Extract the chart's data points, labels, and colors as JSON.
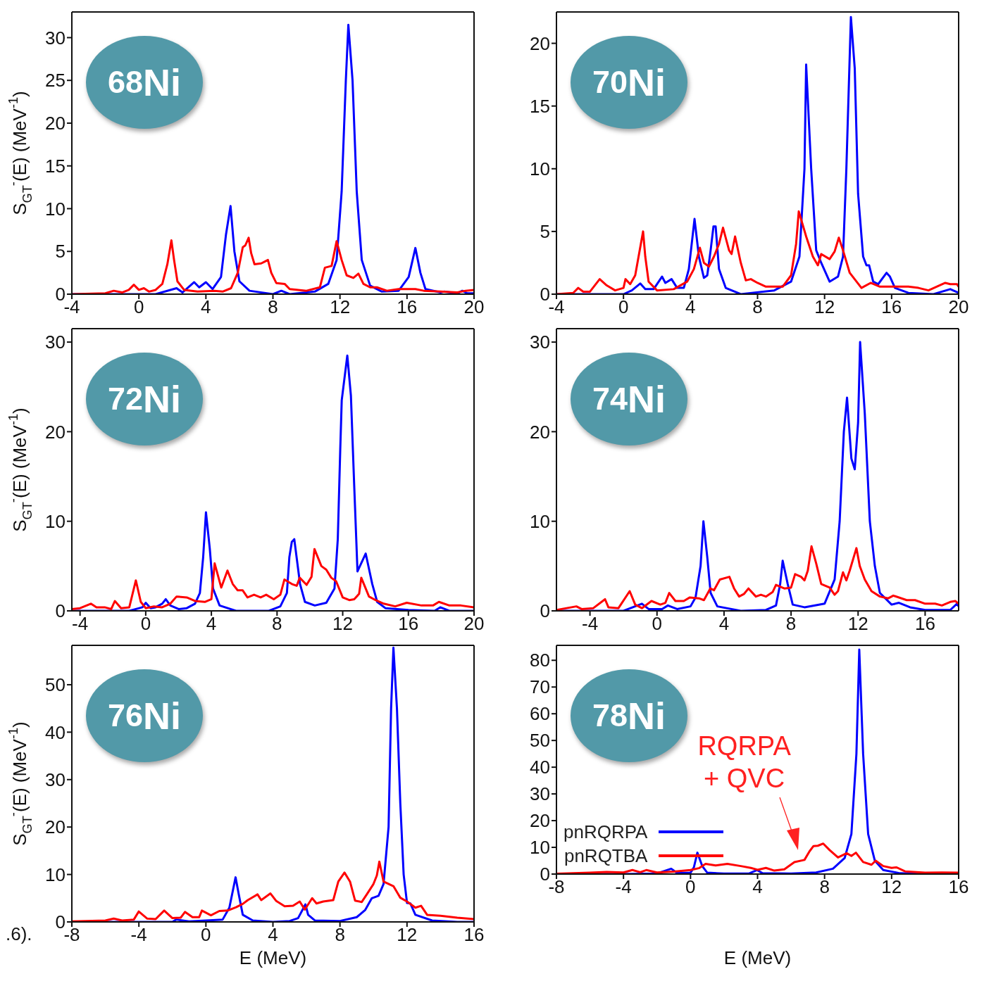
{
  "chart_data": [
    {
      "type": "line",
      "ylabel": "S$_{GT}$$^{-}$(E) (MeV$^{-1}$)",
      "xlim": [
        -4,
        20
      ],
      "xticks": [
        -4,
        0,
        4,
        8,
        12,
        16,
        20
      ],
      "ylim": [
        0,
        33
      ],
      "yticks": [
        0,
        5,
        10,
        15,
        20,
        25,
        30
      ],
      "legend": false,
      "annotations": [
        "$^{68}$Ni"
      ],
      "series": [
        {
          "color": "#0000ff",
          "x": [
            -4,
            1,
            2.25,
            2.6,
            3.3,
            3.6,
            4.0,
            4.4,
            4.9,
            5.2,
            5.47,
            5.7,
            6.0,
            6.6,
            8,
            8.5,
            9,
            10.5,
            11.3,
            11.8,
            12.1,
            12.35,
            12.5,
            12.75,
            13,
            13.3,
            13.8,
            14.5,
            15.5,
            16.1,
            16.5,
            16.8,
            17.1,
            18,
            18.2,
            19,
            19.3,
            19.6,
            20
          ],
          "values": [
            0,
            0,
            0.7,
            0.2,
            1.4,
            0.8,
            1.4,
            0.6,
            2,
            7,
            10.3,
            5,
            1.5,
            0.4,
            0,
            0.4,
            0,
            0.3,
            1.2,
            4,
            12,
            25,
            31.5,
            25,
            12,
            4,
            1,
            0.3,
            0.4,
            2,
            5.4,
            2.5,
            0.6,
            0.2,
            0.3,
            0.1,
            0.4,
            0.1,
            0.1
          ]
        },
        {
          "color": "#ff0000",
          "x": [
            -4,
            -2,
            -1.5,
            -1,
            -0.6,
            -0.3,
            0,
            0.3,
            0.6,
            1,
            1.4,
            1.7,
            1.94,
            2.1,
            2.3,
            2.7,
            3.5,
            4.5,
            5,
            5.5,
            5.9,
            6.2,
            6.35,
            6.55,
            6.7,
            6.9,
            7.3,
            7.5,
            7.7,
            7.9,
            8.2,
            8.7,
            9,
            10,
            10.8,
            11.1,
            11.5,
            11.8,
            12.1,
            12.4,
            12.8,
            13.1,
            13.4,
            13.8,
            14.2,
            14.8,
            15.5,
            16.5,
            17,
            18,
            19,
            19.5,
            20
          ],
          "values": [
            0,
            0.1,
            0.4,
            0.2,
            0.5,
            1.1,
            0.5,
            0.7,
            0.3,
            0.5,
            1.2,
            3.5,
            6.3,
            4,
            1.5,
            0.5,
            0.3,
            0.4,
            0.3,
            0.7,
            2.5,
            5.5,
            5.7,
            6.6,
            4.8,
            3.5,
            3.6,
            3.8,
            4,
            2.5,
            1.3,
            1.2,
            0.6,
            0.4,
            0.8,
            3.1,
            3.3,
            6.2,
            4,
            2.2,
            1.9,
            2.4,
            1.2,
            0.8,
            0.8,
            0.4,
            0.6,
            0.6,
            0.4,
            0.3,
            0.2,
            0.4,
            0.5
          ]
        }
      ]
    },
    {
      "type": "line",
      "xlim": [
        -4,
        20
      ],
      "xticks": [
        -4,
        0,
        4,
        8,
        12,
        16,
        20
      ],
      "ylim": [
        0,
        22.5
      ],
      "yticks": [
        0,
        5,
        10,
        15,
        20
      ],
      "legend": false,
      "annotations": [
        "$^{70}$Ni"
      ],
      "series": [
        {
          "color": "#0000ff",
          "x": [
            -4,
            0,
            0.5,
            1.0,
            1.3,
            1.8,
            2.3,
            2.5,
            2.87,
            3.2,
            3.6,
            3.9,
            4.24,
            4.5,
            4.8,
            5.0,
            5.2,
            5.37,
            5.5,
            5.7,
            6.1,
            7,
            9,
            10,
            10.5,
            10.8,
            10.9,
            11.2,
            11.5,
            11.8,
            12.3,
            12.8,
            13.1,
            13.3,
            13.57,
            13.8,
            14,
            14.3,
            14.5,
            14.66,
            14.9,
            15.2,
            15.7,
            15.9,
            16.2,
            17,
            18.5,
            19.5,
            20
          ],
          "values": [
            0,
            0,
            0.3,
            0.85,
            0.4,
            0.4,
            1.4,
            0.9,
            1.2,
            0.5,
            0.5,
            2,
            6.0,
            3,
            1.3,
            1.5,
            3.5,
            5.4,
            5.4,
            2,
            0.5,
            0,
            0.3,
            1,
            3,
            10,
            18.3,
            10,
            3.5,
            2.5,
            1,
            1.4,
            3,
            10,
            22.1,
            18,
            8,
            3,
            2.3,
            2.3,
            1,
            0.8,
            1.7,
            1.4,
            0.5,
            0.1,
            0,
            0.4,
            0.1
          ]
        },
        {
          "color": "#ff0000",
          "x": [
            -4,
            -3,
            -2.7,
            -2.4,
            -2,
            -1.42,
            -1,
            -0.5,
            0,
            0.12,
            0.4,
            0.7,
            1.17,
            1.3,
            1.5,
            2,
            3,
            3.8,
            4.2,
            4.56,
            4.8,
            5.1,
            5.4,
            5.7,
            5.94,
            6.3,
            6.45,
            6.66,
            7.0,
            7.3,
            7.6,
            8,
            8.5,
            9.5,
            10.0,
            10.3,
            10.46,
            10.9,
            11.3,
            11.6,
            11.8,
            12.3,
            12.6,
            12.85,
            13.1,
            13.5,
            14.2,
            14.75,
            15.3,
            16.2,
            17,
            17.6,
            18.2,
            19.2,
            19.5,
            19.9,
            20
          ],
          "values": [
            0,
            0.1,
            0.5,
            0.2,
            0.2,
            1.2,
            0.7,
            0.3,
            0.5,
            1.2,
            0.8,
            1.5,
            5.0,
            3,
            1,
            0.3,
            0.4,
            1,
            2,
            3.7,
            2.5,
            2.2,
            3,
            4,
            5.3,
            3.5,
            3.2,
            4.6,
            2.5,
            1.1,
            1.2,
            0.9,
            0.6,
            0.6,
            1.5,
            4,
            6.6,
            4.6,
            3,
            2.3,
            3.2,
            2.8,
            3.4,
            4.5,
            3.5,
            1.7,
            0.5,
            0.9,
            0.6,
            0.6,
            0.6,
            0.5,
            0.3,
            0.9,
            0.8,
            0.8,
            0.6
          ]
        }
      ]
    },
    {
      "type": "line",
      "ylabel": "S$_{GT}$$^{-}$(E) (MeV$^{-1}$)",
      "xlim": [
        -4.5,
        20
      ],
      "xticks": [
        -4,
        0,
        4,
        8,
        12,
        16,
        20
      ],
      "ylim": [
        0,
        31.5
      ],
      "yticks": [
        0,
        10,
        20,
        30
      ],
      "legend": false,
      "annotations": [
        "$^{72}$Ni"
      ],
      "series": [
        {
          "color": "#0000ff",
          "x": [
            -4.5,
            -1,
            -0.2,
            0,
            0.3,
            0.6,
            1.0,
            1.22,
            1.5,
            2,
            2.5,
            3,
            3.3,
            3.5,
            3.67,
            3.9,
            4.1,
            4.5,
            5.5,
            7.5,
            8.2,
            8.6,
            8.75,
            8.9,
            9.05,
            9.4,
            9.7,
            10.3,
            11,
            11.5,
            11.7,
            11.85,
            11.94,
            12.28,
            12.5,
            12.7,
            12.9,
            13.4,
            13.8,
            14.1,
            14.6,
            16,
            17.6,
            17.94,
            18.5,
            20
          ],
          "values": [
            0,
            0,
            0.4,
            0.9,
            0.3,
            0.4,
            0.8,
            1.3,
            0.6,
            0.2,
            0.3,
            0.8,
            2,
            6,
            11.0,
            7,
            2.5,
            0.6,
            0,
            0,
            0.5,
            2,
            6,
            7.7,
            8,
            3,
            1,
            0.6,
            0.9,
            2.5,
            8,
            18,
            23.5,
            28.5,
            24,
            14,
            4.4,
            6.4,
            3,
            1,
            0.3,
            0.1,
            0,
            0.4,
            0,
            0
          ]
        },
        {
          "color": "#ff0000",
          "x": [
            -4.5,
            -4,
            -3.34,
            -3,
            -2.5,
            -2.1,
            -1.88,
            -1.5,
            -1.0,
            -0.6,
            -0.3,
            0,
            0.5,
            1,
            1.5,
            1.88,
            2.5,
            3,
            3.6,
            4.0,
            4.2,
            4.6,
            4.98,
            5.3,
            5.6,
            5.9,
            6.2,
            6.6,
            7.0,
            7.34,
            7.8,
            8.2,
            8.45,
            8.9,
            9.2,
            9.38,
            9.8,
            10.1,
            10.28,
            10.7,
            11.0,
            11.3,
            11.6,
            12,
            12.4,
            12.7,
            13.0,
            13.13,
            13.6,
            14,
            14.5,
            15.2,
            15.9,
            16.8,
            17.5,
            17.86,
            18.5,
            19.2,
            20
          ],
          "values": [
            0.2,
            0.3,
            0.8,
            0.4,
            0.4,
            0.2,
            1.1,
            0.3,
            0.4,
            3.4,
            1,
            0.3,
            0.5,
            0.4,
            0.8,
            1.6,
            1.5,
            1.1,
            1,
            1.3,
            5.3,
            2.6,
            4.5,
            3,
            2.3,
            2.3,
            1.5,
            1.8,
            1.5,
            1.8,
            1.3,
            1.8,
            3.5,
            3.0,
            2.8,
            3.7,
            2.9,
            3.8,
            6.9,
            5.0,
            4.6,
            3.7,
            3.3,
            1.5,
            1.2,
            1.3,
            1.9,
            3.7,
            1.6,
            1.2,
            0.8,
            0.5,
            0.9,
            0.6,
            0.6,
            1.0,
            0.6,
            0.6,
            0.4
          ]
        }
      ]
    },
    {
      "type": "line",
      "xlim": [
        -6,
        18
      ],
      "xticks": [
        -4,
        0,
        4,
        8,
        12,
        16
      ],
      "ylim": [
        0,
        31.5
      ],
      "yticks": [
        0,
        10,
        20,
        30
      ],
      "legend": false,
      "annotations": [
        "$^{74}$Ni"
      ],
      "series": [
        {
          "color": "#0000ff",
          "x": [
            -6,
            -2,
            -0.9,
            -0.5,
            0,
            0.3,
            0.65,
            1.2,
            2,
            2.3,
            2.6,
            2.77,
            3.0,
            3.2,
            3.6,
            5,
            6.5,
            7.1,
            7.35,
            7.5,
            7.8,
            8.1,
            8.8,
            10,
            10.6,
            10.9,
            11.15,
            11.34,
            11.6,
            11.8,
            12.0,
            12.12,
            12.4,
            12.7,
            13.0,
            13.3,
            14,
            14.44,
            15.1,
            16,
            17.5,
            17.9,
            18
          ],
          "values": [
            0,
            0,
            0.8,
            0.2,
            0.2,
            0.2,
            0.6,
            0.2,
            0.5,
            1.5,
            5,
            10.0,
            6,
            2,
            0.5,
            0,
            0.1,
            0.6,
            3,
            5.6,
            3,
            0.7,
            0.4,
            0.8,
            3.5,
            10,
            20,
            23.8,
            17,
            15.8,
            21,
            30,
            22,
            10,
            5,
            2,
            0.7,
            0.9,
            0.4,
            0.1,
            0.1,
            0.8,
            0.5
          ]
        },
        {
          "color": "#ff0000",
          "x": [
            -6,
            -4.81,
            -4.5,
            -3.8,
            -3.1,
            -2.9,
            -2.3,
            -1.63,
            -1.3,
            -0.9,
            -0.33,
            0.2,
            0.5,
            0.73,
            1.1,
            1.6,
            1.96,
            2.5,
            2.8,
            3.18,
            3.4,
            3.75,
            4.32,
            4.6,
            4.9,
            5.2,
            5.46,
            5.9,
            6.2,
            6.5,
            6.9,
            7.1,
            7.6,
            8.0,
            8.24,
            8.6,
            8.8,
            9.0,
            9.22,
            9.5,
            9.8,
            10.3,
            10.6,
            10.8,
            11.1,
            11.3,
            11.5,
            11.9,
            12.1,
            12.4,
            12.8,
            13.3,
            13.8,
            14.1,
            14.9,
            15.4,
            16,
            16.6,
            17,
            17.5,
            17.8,
            18
          ],
          "values": [
            0.1,
            0.5,
            0.2,
            0.3,
            1.3,
            0.4,
            0.3,
            2.2,
            0.7,
            0.3,
            1.1,
            0.7,
            0.9,
            2.0,
            1.1,
            1.1,
            1.5,
            1.4,
            1.2,
            2.5,
            2.3,
            3.5,
            3.8,
            2.5,
            1.6,
            1.9,
            2.5,
            1.6,
            1.8,
            1.6,
            2.1,
            2.9,
            2.5,
            2.6,
            4.1,
            3.8,
            3.4,
            4.5,
            7.2,
            5.3,
            3.0,
            2.6,
            1.8,
            2.2,
            4.3,
            3.4,
            4.5,
            7.0,
            5,
            3.5,
            2.2,
            1.6,
            1.4,
            1.7,
            1.2,
            1.2,
            0.8,
            0.8,
            0.6,
            1.0,
            1.1,
            0.8
          ]
        }
      ]
    },
    {
      "type": "line",
      "ylabel": "S$_{GT}$$^{-}$(E) (MeV$^{-1}$)",
      "xlabel": "E (MeV)",
      "xlim": [
        -8,
        16
      ],
      "xticks": [
        -8,
        -4,
        0,
        4,
        8,
        12,
        16
      ],
      "ylim": [
        0,
        58.3
      ],
      "yticks": [
        0,
        10,
        20,
        30,
        40,
        50
      ],
      "legend": false,
      "annotations": [
        "$^{76}$Ni",
        ".6)."
      ],
      "series": [
        {
          "color": "#0000ff",
          "x": [
            -8,
            -2,
            -1.77,
            -1,
            0,
            1,
            1.4,
            1.77,
            1.95,
            2.2,
            2.8,
            4,
            5,
            5.5,
            5.94,
            6.1,
            6.5,
            8,
            9,
            9.5,
            9.9,
            10.3,
            10.6,
            10.9,
            11.05,
            11.19,
            11.4,
            11.6,
            11.8,
            12.0,
            12.2,
            12.5,
            13.5,
            15,
            16
          ],
          "values": [
            0,
            0,
            0.5,
            0.1,
            0.3,
            0.5,
            3,
            9.4,
            6,
            1.5,
            0.3,
            0,
            0.2,
            0.8,
            3.7,
            1.5,
            0.3,
            0.2,
            1,
            2.5,
            5.0,
            5.5,
            8,
            20,
            45,
            57.8,
            45,
            25,
            10,
            4.0,
            3.9,
            1.5,
            0.3,
            0,
            0
          ]
        },
        {
          "color": "#ff0000",
          "x": [
            -8,
            -6,
            -5.5,
            -5,
            -4.3,
            -4.01,
            -3.5,
            -3,
            -2.49,
            -2,
            -1.5,
            -1.25,
            -0.8,
            -0.4,
            -0.24,
            0.3,
            0.8,
            1.3,
            1.8,
            2.2,
            2.5,
            3.08,
            3.3,
            3.85,
            4.2,
            4.7,
            5.2,
            5.6,
            5.9,
            6.34,
            6.6,
            7.0,
            7.6,
            7.9,
            8.27,
            8.6,
            8.9,
            9.3,
            9.6,
            10,
            10.2,
            10.35,
            10.6,
            11.2,
            11.6,
            12,
            12.5,
            12.84,
            13.2,
            14,
            15,
            16
          ],
          "values": [
            0.1,
            0.3,
            0.7,
            0.3,
            0.5,
            2.2,
            0.7,
            0.6,
            2.4,
            0.8,
            0.9,
            2.1,
            1,
            1,
            2.4,
            1.4,
            2.3,
            2.4,
            3.1,
            3.8,
            4.6,
            5.8,
            4.6,
            6.0,
            4.4,
            3.3,
            3.4,
            4.3,
            2.6,
            5.0,
            3.9,
            4.3,
            4.6,
            8.5,
            10.4,
            8.5,
            4.5,
            4.2,
            5.8,
            8.0,
            9.8,
            12.7,
            8.5,
            7.5,
            5.1,
            4.3,
            3.0,
            3.4,
            1.5,
            1.3,
            0.9,
            0.6
          ]
        }
      ]
    },
    {
      "type": "line",
      "xlabel": "E (MeV)",
      "xlim": [
        -8,
        16
      ],
      "xticks": [
        -8,
        -4,
        0,
        4,
        8,
        12,
        16
      ],
      "ylim": [
        0,
        85.6
      ],
      "yticks": [
        0,
        10,
        20,
        30,
        40,
        50,
        60,
        70,
        80
      ],
      "legend": "left",
      "annotations": [
        "$^{78}$Ni",
        "RQRPA\n+ QVC"
      ],
      "series": [
        {
          "name": "pnRQRPA",
          "color": "#0000ff",
          "x": [
            -8,
            -4,
            -2,
            -1.15,
            -0.8,
            0,
            0.2,
            0.41,
            0.7,
            1.0,
            2,
            3.5,
            3.96,
            4.3,
            6,
            7.5,
            8.5,
            9.2,
            9.6,
            9.9,
            10.07,
            10.3,
            10.6,
            11,
            11.5,
            12.5,
            14,
            16
          ],
          "values": [
            0,
            0,
            0.2,
            2.0,
            0.4,
            0.5,
            2.5,
            8.0,
            3,
            0.5,
            0.2,
            0.2,
            1.5,
            0.3,
            0.2,
            0.6,
            2,
            6,
            15,
            45,
            84,
            45,
            15,
            5,
            1.5,
            0.3,
            0,
            0
          ]
        },
        {
          "name": "pnRQTBA",
          "color": "#ff0000",
          "x": [
            -8,
            -6,
            -5,
            -4,
            -3.47,
            -3,
            -2.64,
            -2,
            -1,
            0,
            0.5,
            0.9,
            1.5,
            2.2,
            3,
            3.6,
            4,
            4.5,
            5.0,
            5.6,
            6.2,
            6.8,
            7.1,
            7.34,
            7.6,
            7.92,
            8.3,
            8.8,
            9.32,
            9.6,
            9.87,
            10.3,
            10.8,
            11.05,
            11.5,
            12,
            12.3,
            12.8,
            14,
            15,
            16
          ],
          "values": [
            0.1,
            0.5,
            0.8,
            0.6,
            1.5,
            0.7,
            1.5,
            0.6,
            0.9,
            1.5,
            2.2,
            3.8,
            3.2,
            3.8,
            3.0,
            2.3,
            1.6,
            2.3,
            1.3,
            1.8,
            4.5,
            5.3,
            8.5,
            10.5,
            10.6,
            11.4,
            9,
            6.2,
            7.8,
            6.8,
            8.0,
            4.5,
            3.5,
            5.0,
            3.0,
            2.3,
            2.5,
            1.0,
            0.5,
            0.6,
            0.5
          ]
        }
      ]
    }
  ]
}
